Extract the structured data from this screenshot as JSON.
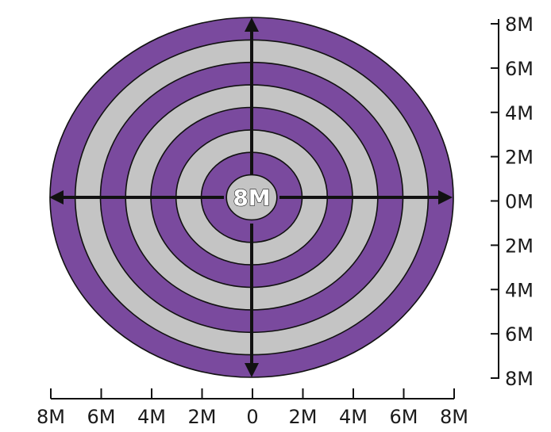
{
  "diagram": {
    "center_label": "8M",
    "rings": 8,
    "colors": {
      "purple": "#7a4a9e",
      "gray": "#c4c4c4",
      "line": "#111111"
    },
    "x_axis_ticks": [
      "8M",
      "6M",
      "4M",
      "2M",
      "0",
      "2M",
      "4M",
      "6M",
      "8M"
    ],
    "y_axis_ticks": [
      "8M",
      "6M",
      "4M",
      "2M",
      "0M",
      "2M",
      "4M",
      "6M",
      "8M"
    ]
  }
}
